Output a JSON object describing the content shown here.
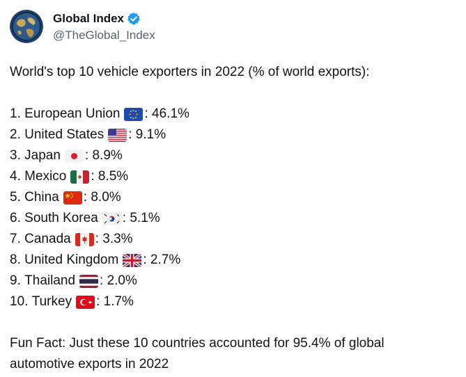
{
  "author": {
    "display_name": "Global Index",
    "handle": "@TheGlobal_Index",
    "avatar_icon": "globe-avatar-icon",
    "verified_icon": "verified-badge-icon",
    "verified_color": "#1d9bf0"
  },
  "post": {
    "intro": "World's top 10 vehicle exporters in 2022 (% of world exports):",
    "items": [
      {
        "rank": "1.",
        "country": "European Union",
        "flag": "eu-flag-icon",
        "value": ": 46.1%"
      },
      {
        "rank": "2.",
        "country": "United States",
        "flag": "us-flag-icon",
        "value": ": 9.1%"
      },
      {
        "rank": "3.",
        "country": "Japan",
        "flag": "japan-flag-icon",
        "value": ": 8.9%"
      },
      {
        "rank": "4.",
        "country": "Mexico",
        "flag": "mexico-flag-icon",
        "value": ": 8.5%"
      },
      {
        "rank": "5.",
        "country": "China",
        "flag": "china-flag-icon",
        "value": ": 8.0%"
      },
      {
        "rank": "6.",
        "country": "South Korea",
        "flag": "south-korea-flag-icon",
        "value": ": 5.1%"
      },
      {
        "rank": "7.",
        "country": "Canada",
        "flag": "canada-flag-icon",
        "value": ": 3.3%"
      },
      {
        "rank": "8.",
        "country": "United Kingdom",
        "flag": "uk-flag-icon",
        "value": ": 2.7%"
      },
      {
        "rank": "9.",
        "country": "Thailand",
        "flag": "thailand-flag-icon",
        "value": ": 2.0%"
      },
      {
        "rank": "10.",
        "country": "Turkey",
        "flag": "turkey-flag-icon",
        "value": ": 1.7%"
      }
    ],
    "fun_fact": "Fun Fact: Just these 10 countries accounted for 95.4% of global automotive exports in 2022"
  }
}
